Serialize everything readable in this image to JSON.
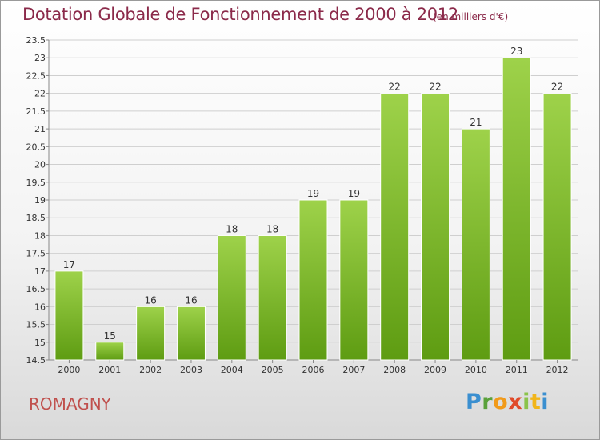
{
  "title": "Dotation Globale de Fonctionnement de 2000 à 2012",
  "subtitle": "(en milliers d'€)",
  "commune": "ROMAGNY",
  "logo": {
    "p": "P",
    "r": "r",
    "o": "o",
    "x": "x",
    "i1": "i",
    "t": "t",
    "i2": "i"
  },
  "colors": {
    "title": "#8b2a4a",
    "bar_top": "#9ed24a",
    "bar_bottom": "#5e9c12",
    "commune": "#c0504d"
  },
  "chart_data": {
    "type": "bar",
    "title": "Dotation Globale de Fonctionnement de 2000 à 2012",
    "subtitle": "(en milliers d'€)",
    "categories": [
      "2000",
      "2001",
      "2002",
      "2003",
      "2004",
      "2005",
      "2006",
      "2007",
      "2008",
      "2009",
      "2010",
      "2011",
      "2012"
    ],
    "values": [
      17,
      15,
      16,
      16,
      18,
      18,
      19,
      19,
      22,
      22,
      21,
      23,
      22
    ],
    "data_labels": [
      "17",
      "15",
      "16",
      "16",
      "18",
      "18",
      "19",
      "19",
      "22",
      "22",
      "21",
      "23",
      "22"
    ],
    "ylim": [
      14.5,
      23.5
    ],
    "yticks": [
      14.5,
      15,
      15.5,
      16,
      16.5,
      17,
      17.5,
      18,
      18.5,
      19,
      19.5,
      20,
      20.5,
      21,
      21.5,
      22,
      22.5,
      23,
      23.5
    ],
    "grid": true,
    "xlabel": "",
    "ylabel": ""
  }
}
